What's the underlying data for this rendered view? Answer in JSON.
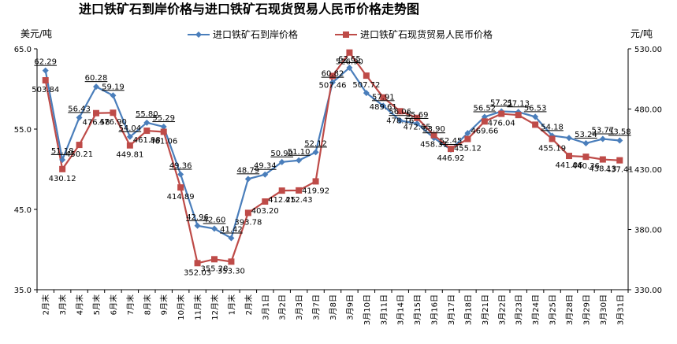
{
  "chart_data": {
    "type": "line",
    "title": "进口铁矿石到岸价格与进口铁矿石现货贸易人民币价格走势图",
    "y_left_label": "美元/吨",
    "y_right_label": "元/吨",
    "y_left_range": [
      35.0,
      65.0
    ],
    "y_right_range": [
      330.0,
      530.0
    ],
    "y_left_ticks": [
      "35.0",
      "45.0",
      "55.0",
      "65.0"
    ],
    "y_right_ticks": [
      "330.00",
      "380.00",
      "430.00",
      "480.00",
      "530.00"
    ],
    "legend_position": "top",
    "categories": [
      "2月末",
      "3月末",
      "4月末",
      "5月末",
      "6月末",
      "7月末",
      "8月末",
      "9月末",
      "10月末",
      "11月末",
      "12月末",
      "1月末",
      "2月末",
      "3月1日",
      "3月2日",
      "3月3日",
      "3月7日",
      "3月8日",
      "3月9日",
      "3月10日",
      "3月11日",
      "3月14日",
      "3月15日",
      "3月16日",
      "3月17日",
      "3月18日",
      "3月21日",
      "3月22日",
      "3月23日",
      "3月24日",
      "3月25日",
      "3月28日",
      "3月29日",
      "3月30日",
      "3月31日"
    ],
    "series": [
      {
        "name": "进口铁矿石到岸价格",
        "axis": "left",
        "color": "#4a7ebb",
        "marker": "diamond",
        "values": [
          62.29,
          51.18,
          56.43,
          60.28,
          59.19,
          54.04,
          55.8,
          55.29,
          49.36,
          42.96,
          42.6,
          41.42,
          48.79,
          49.34,
          50.9,
          51.1,
          52.12,
          60.82,
          62.65,
          59.5,
          57.91,
          56.06,
          55.69,
          53.9,
          52.45,
          54.5,
          56.52,
          57.21,
          57.13,
          56.53,
          54.18,
          53.9,
          53.24,
          53.77,
          53.58
        ],
        "labels": [
          "62.29",
          "51.18",
          "56.43",
          "60.28",
          "59.19",
          "54.04",
          "55.80",
          "55.29",
          "49.36",
          "42.96",
          "42.60",
          "41.42",
          "48.79",
          "49.34",
          "50.90",
          "51.10",
          "52.12",
          "60.82",
          "62.65",
          "",
          "57.91",
          "56.06",
          "55.69",
          "53.90",
          "52.45",
          "",
          "56.52",
          "57.21",
          "57.13",
          "56.53",
          "54.18",
          "",
          "53.24",
          "53.77",
          "53.58"
        ]
      },
      {
        "name": "进口铁矿石现货贸易人民币价格",
        "axis": "right",
        "color": "#be4b48",
        "marker": "square",
        "values": [
          503.84,
          430.12,
          450.21,
          476.58,
          476.9,
          449.81,
          461.98,
          461.06,
          414.89,
          352.03,
          355.28,
          353.3,
          393.78,
          403.2,
          412.25,
          412.43,
          419.92,
          507.46,
          526.9,
          507.72,
          489.61,
          478.16,
          472.65,
          458.31,
          446.92,
          455.12,
          469.66,
          476.04,
          475.0,
          467.0,
          455.19,
          441.06,
          440.36,
          438.13,
          437.41
        ],
        "labels": [
          "503.84",
          "430.12",
          "450.21",
          "476.58",
          "476.90",
          "449.81",
          "461.98",
          "461.06",
          "414.89",
          "352.03",
          "355.28",
          "353.30",
          "393.78",
          "403.20",
          "412.25",
          "412.43",
          "419.92",
          "507.46",
          "526.90",
          "507.72",
          "489.61",
          "478.16",
          "472.65",
          "458.31",
          "446.92",
          "455.12",
          "469.66",
          "476.04",
          "",
          "",
          "455.19",
          "441.06",
          "440.36",
          "438.13",
          "437.41"
        ]
      }
    ]
  }
}
